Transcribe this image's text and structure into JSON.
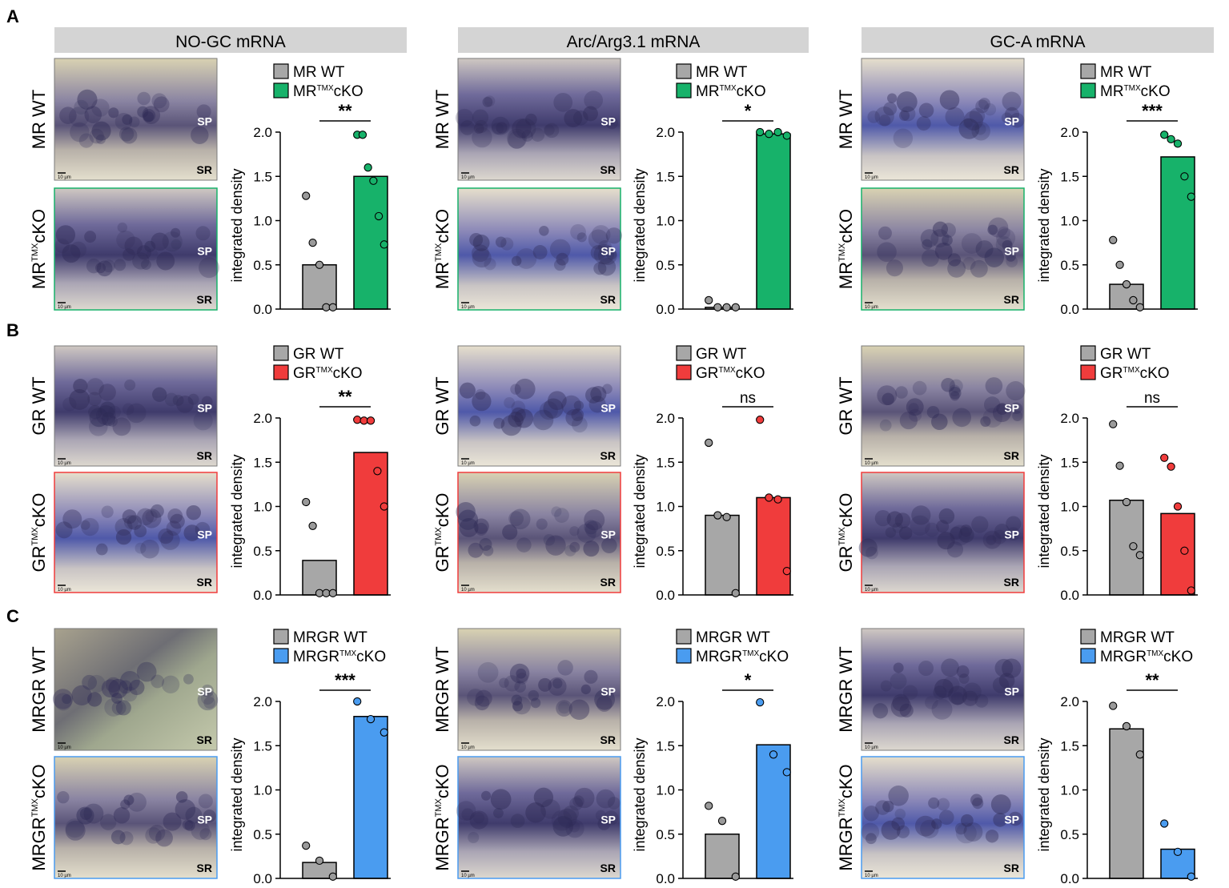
{
  "panel_letters": [
    "A",
    "B",
    "C"
  ],
  "column_headers": [
    "NO-GC mRNA",
    "Arc/Arg3.1 mRNA",
    "GC-A mRNA"
  ],
  "layer_labels": {
    "sp": "SP",
    "sr": "SR"
  },
  "scale_bar_label": "10 µm",
  "rows": [
    {
      "wt_label": "MR WT",
      "ko_prefix": "MR",
      "ko_sup": "TMX",
      "ko_suffix": "cKO",
      "ko_color": "#17b26a"
    },
    {
      "wt_label": "GR WT",
      "ko_prefix": "GR",
      "ko_sup": "TMX",
      "ko_suffix": "cKO",
      "ko_color": "#f03c3c"
    },
    {
      "wt_label": "MRGR WT",
      "ko_prefix": "MRGR",
      "ko_sup": "TMX",
      "ko_suffix": "cKO",
      "ko_color": "#4a9cf0"
    }
  ],
  "colors": {
    "wt_bar": "#a7a7a7",
    "axis": "#000000"
  },
  "chart_data": [
    {
      "type": "bar",
      "row": 0,
      "col": 0,
      "title": "NO-GC mRNA",
      "ylabel": "integrated density",
      "ylim": [
        0,
        2.0
      ],
      "yticks": [
        "0.0",
        "0.5",
        "1.0",
        "1.5",
        "2.0"
      ],
      "categories": [
        "MR WT",
        "MRTMXcKO"
      ],
      "bar_values": [
        0.5,
        1.5
      ],
      "points": [
        [
          1.28,
          0.75,
          0.5,
          0.02,
          0.02
        ],
        [
          1.97,
          1.97,
          1.6,
          1.45,
          1.05,
          0.73
        ]
      ],
      "significance": "**"
    },
    {
      "type": "bar",
      "row": 0,
      "col": 1,
      "title": "Arc/Arg3.1 mRNA",
      "ylabel": "integrated density",
      "ylim": [
        0,
        2.0
      ],
      "yticks": [
        "0.0",
        "0.5",
        "1.0",
        "1.5",
        "2.0"
      ],
      "categories": [
        "MR WT",
        "MRTMXcKO"
      ],
      "bar_values": [
        0.02,
        1.98
      ],
      "points": [
        [
          0.1,
          0.02,
          0.02,
          0.02
        ],
        [
          2.0,
          1.98,
          2.0,
          1.96
        ]
      ],
      "significance": "*"
    },
    {
      "type": "bar",
      "row": 0,
      "col": 2,
      "title": "GC-A mRNA",
      "ylabel": "integrated density",
      "ylim": [
        0,
        2.0
      ],
      "yticks": [
        "0.0",
        "0.5",
        "1.0",
        "1.5",
        "2.0"
      ],
      "categories": [
        "MR WT",
        "MRTMXcKO"
      ],
      "bar_values": [
        0.28,
        1.72
      ],
      "points": [
        [
          0.78,
          0.5,
          0.28,
          0.1,
          0.02
        ],
        [
          1.97,
          1.92,
          1.87,
          1.5,
          1.27
        ]
      ],
      "significance": "***"
    },
    {
      "type": "bar",
      "row": 1,
      "col": 0,
      "title": "NO-GC mRNA",
      "ylabel": "integrated density",
      "ylim": [
        0,
        2.0
      ],
      "yticks": [
        "0.0",
        "0.5",
        "1.0",
        "1.5",
        "2.0"
      ],
      "categories": [
        "GR WT",
        "GRTMXcKO"
      ],
      "bar_values": [
        0.39,
        1.61
      ],
      "points": [
        [
          1.05,
          0.78,
          0.02,
          0.02,
          0.02
        ],
        [
          1.98,
          1.97,
          1.97,
          1.4,
          1.0
        ]
      ],
      "significance": "**"
    },
    {
      "type": "bar",
      "row": 1,
      "col": 1,
      "title": "Arc/Arg3.1 mRNA",
      "ylabel": "integrated density",
      "ylim": [
        0,
        2.0
      ],
      "yticks": [
        "0.0",
        "0.5",
        "1.0",
        "1.5",
        "2.0"
      ],
      "categories": [
        "GR WT",
        "GRTMXcKO"
      ],
      "bar_values": [
        0.9,
        1.1
      ],
      "points": [
        [
          1.72,
          0.9,
          0.88,
          0.02
        ],
        [
          1.98,
          1.1,
          1.08,
          0.27
        ]
      ],
      "significance": "ns"
    },
    {
      "type": "bar",
      "row": 1,
      "col": 2,
      "title": "GC-A mRNA",
      "ylabel": "integrated density",
      "ylim": [
        0,
        2.0
      ],
      "yticks": [
        "0.0",
        "0.5",
        "1.0",
        "1.5",
        "2.0"
      ],
      "categories": [
        "GR WT",
        "GRTMXcKO"
      ],
      "bar_values": [
        1.07,
        0.92
      ],
      "points": [
        [
          1.93,
          1.46,
          1.05,
          0.55,
          0.45
        ],
        [
          1.55,
          1.45,
          1.0,
          0.5,
          0.05
        ]
      ],
      "significance": "ns"
    },
    {
      "type": "bar",
      "row": 2,
      "col": 0,
      "title": "NO-GC mRNA",
      "ylabel": "integrated density",
      "ylim": [
        0,
        2.0
      ],
      "yticks": [
        "0.0",
        "0.5",
        "1.0",
        "1.5",
        "2.0"
      ],
      "categories": [
        "MRGR WT",
        "MRGRTMXcKO"
      ],
      "bar_values": [
        0.18,
        1.83
      ],
      "points": [
        [
          0.37,
          0.2,
          0.02
        ],
        [
          2.0,
          1.8,
          1.65
        ]
      ],
      "significance": "***"
    },
    {
      "type": "bar",
      "row": 2,
      "col": 1,
      "title": "Arc/Arg3.1 mRNA",
      "ylabel": "integrated density",
      "ylim": [
        0,
        2.0
      ],
      "yticks": [
        "0.0",
        "0.5",
        "1.0",
        "1.5",
        "2.0"
      ],
      "categories": [
        "MRGR WT",
        "MRGRTMXcKO"
      ],
      "bar_values": [
        0.5,
        1.51
      ],
      "points": [
        [
          0.82,
          0.65,
          0.02
        ],
        [
          1.99,
          1.4,
          1.2
        ]
      ],
      "significance": "*"
    },
    {
      "type": "bar",
      "row": 2,
      "col": 2,
      "title": "GC-A mRNA",
      "ylabel": "integrated density",
      "ylim": [
        0,
        2.0
      ],
      "yticks": [
        "0.0",
        "0.5",
        "1.0",
        "1.5",
        "2.0"
      ],
      "categories": [
        "MRGR WT",
        "MRGRTMXcKO"
      ],
      "bar_values": [
        1.69,
        0.33
      ],
      "points": [
        [
          1.95,
          1.72,
          1.4
        ],
        [
          0.62,
          0.3,
          0.02
        ]
      ],
      "significance": "**"
    }
  ]
}
